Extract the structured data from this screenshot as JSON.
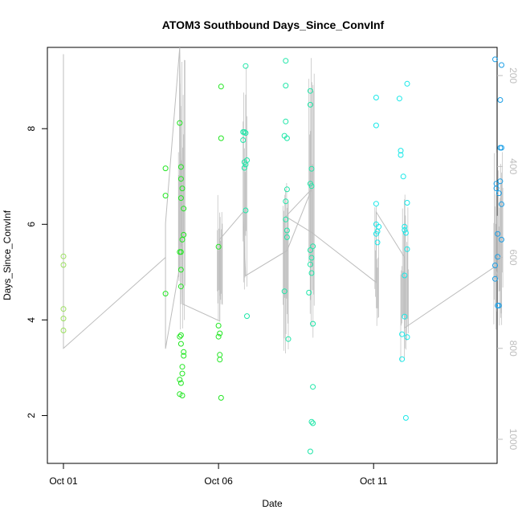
{
  "chart_data": {
    "type": "scatter",
    "title": "ATOM3 Southbound Days_Since_ConvInf",
    "xlabel": "Date",
    "ylabel": "Days_Since_ConvInf",
    "x_axis_type": "date",
    "xlim": [
      "2020-10-01",
      "2020-10-15T12:00"
    ],
    "ylim": [
      1,
      9.7
    ],
    "x_ticks": [
      {
        "value": "2020-10-01",
        "label": "Oct 01"
      },
      {
        "value": "2020-10-06",
        "label": "Oct 06"
      },
      {
        "value": "2020-10-11",
        "label": "Oct 11"
      }
    ],
    "y_ticks": [
      2,
      4,
      6,
      8
    ],
    "right_axis": {
      "ticks": [
        200,
        400,
        600,
        800,
        1000
      ],
      "range": [
        1053,
        138
      ],
      "color": "#bdbdbd"
    },
    "grid": false,
    "legend": "none",
    "point_color_scale": [
      "#9be15d",
      "#22e622",
      "#1fe6a8",
      "#18e8e8",
      "#1a9ee6"
    ],
    "points": [
      {
        "x": "2020-10-01",
        "y": 5.33
      },
      {
        "x": "2020-10-01",
        "y": 5.15
      },
      {
        "x": "2020-10-01",
        "y": 4.23
      },
      {
        "x": "2020-10-01",
        "y": 4.03
      },
      {
        "x": "2020-10-01",
        "y": 3.78
      },
      {
        "x": "2020-10-04T07:00",
        "y": 7.17
      },
      {
        "x": "2020-10-04T07:00",
        "y": 6.6
      },
      {
        "x": "2020-10-04T07:00",
        "y": 4.55
      },
      {
        "x": "2020-10-04T18:00",
        "y": 8.12
      },
      {
        "x": "2020-10-04T19:00",
        "y": 7.2
      },
      {
        "x": "2020-10-04T19:00",
        "y": 6.95
      },
      {
        "x": "2020-10-04T20:00",
        "y": 6.75
      },
      {
        "x": "2020-10-04T19:00",
        "y": 6.55
      },
      {
        "x": "2020-10-04T21:00",
        "y": 6.33
      },
      {
        "x": "2020-10-04T21:00",
        "y": 5.78
      },
      {
        "x": "2020-10-04T20:00",
        "y": 5.68
      },
      {
        "x": "2020-10-04T18:00",
        "y": 5.42
      },
      {
        "x": "2020-10-04T19:00",
        "y": 5.42
      },
      {
        "x": "2020-10-04T19:00",
        "y": 5.05
      },
      {
        "x": "2020-10-04T19:00",
        "y": 4.7
      },
      {
        "x": "2020-10-04T19:00",
        "y": 3.68
      },
      {
        "x": "2020-10-04T18:00",
        "y": 3.65
      },
      {
        "x": "2020-10-04T19:00",
        "y": 3.5
      },
      {
        "x": "2020-10-04T21:00",
        "y": 3.33
      },
      {
        "x": "2020-10-04T21:00",
        "y": 3.25
      },
      {
        "x": "2020-10-04T20:00",
        "y": 3.02
      },
      {
        "x": "2020-10-04T20:00",
        "y": 2.88
      },
      {
        "x": "2020-10-04T18:00",
        "y": 2.75
      },
      {
        "x": "2020-10-04T19:00",
        "y": 2.68
      },
      {
        "x": "2020-10-04T18:00",
        "y": 2.45
      },
      {
        "x": "2020-10-04T20:00",
        "y": 2.42
      },
      {
        "x": "2020-10-06T02:00",
        "y": 8.88
      },
      {
        "x": "2020-10-06T02:00",
        "y": 7.8
      },
      {
        "x": "2020-10-06T00:00",
        "y": 5.53
      },
      {
        "x": "2020-10-06T00:00",
        "y": 3.88
      },
      {
        "x": "2020-10-06T01:00",
        "y": 3.72
      },
      {
        "x": "2020-10-06T00:00",
        "y": 3.65
      },
      {
        "x": "2020-10-06T01:00",
        "y": 3.27
      },
      {
        "x": "2020-10-06T01:00",
        "y": 3.17
      },
      {
        "x": "2020-10-06T02:00",
        "y": 2.37
      },
      {
        "x": "2020-10-06T21:00",
        "y": 9.31
      },
      {
        "x": "2020-10-06T19:00",
        "y": 7.93
      },
      {
        "x": "2020-10-06T20:00",
        "y": 7.93
      },
      {
        "x": "2020-10-06T21:00",
        "y": 7.91
      },
      {
        "x": "2020-10-06T19:00",
        "y": 7.76
      },
      {
        "x": "2020-10-06T22:00",
        "y": 7.34
      },
      {
        "x": "2020-10-06T20:00",
        "y": 7.3
      },
      {
        "x": "2020-10-06T21:00",
        "y": 7.25
      },
      {
        "x": "2020-10-06T20:00",
        "y": 7.18
      },
      {
        "x": "2020-10-06T21:00",
        "y": 6.29
      },
      {
        "x": "2020-10-06T22:00",
        "y": 4.08
      },
      {
        "x": "2020-10-08T04:00",
        "y": 9.42
      },
      {
        "x": "2020-10-08T04:00",
        "y": 8.9
      },
      {
        "x": "2020-10-08T04:00",
        "y": 8.15
      },
      {
        "x": "2020-10-08T03:00",
        "y": 7.85
      },
      {
        "x": "2020-10-08T05:00",
        "y": 7.8
      },
      {
        "x": "2020-10-08T05:00",
        "y": 6.73
      },
      {
        "x": "2020-10-08T04:00",
        "y": 6.48
      },
      {
        "x": "2020-10-08T04:00",
        "y": 6.1
      },
      {
        "x": "2020-10-08T05:00",
        "y": 5.87
      },
      {
        "x": "2020-10-08T05:00",
        "y": 5.73
      },
      {
        "x": "2020-10-08T03:00",
        "y": 4.6
      },
      {
        "x": "2020-10-08T06:00",
        "y": 3.6
      },
      {
        "x": "2020-10-08T23:00",
        "y": 8.79
      },
      {
        "x": "2020-10-08T23:00",
        "y": 8.5
      },
      {
        "x": "2020-10-09T00:00",
        "y": 7.16
      },
      {
        "x": "2020-10-08T23:00",
        "y": 6.85
      },
      {
        "x": "2020-10-09T00:00",
        "y": 6.8
      },
      {
        "x": "2020-10-09T01:00",
        "y": 5.54
      },
      {
        "x": "2020-10-08T23:00",
        "y": 5.46
      },
      {
        "x": "2020-10-09T00:00",
        "y": 5.3
      },
      {
        "x": "2020-10-08T23:00",
        "y": 5.16
      },
      {
        "x": "2020-10-09T00:00",
        "y": 4.98
      },
      {
        "x": "2020-10-08T22:00",
        "y": 4.57
      },
      {
        "x": "2020-10-09T01:00",
        "y": 3.92
      },
      {
        "x": "2020-10-09T01:00",
        "y": 2.6
      },
      {
        "x": "2020-10-09T00:00",
        "y": 1.87
      },
      {
        "x": "2020-10-09T01:00",
        "y": 1.84
      },
      {
        "x": "2020-10-08T23:00",
        "y": 1.25
      },
      {
        "x": "2020-10-11T02:00",
        "y": 8.65
      },
      {
        "x": "2020-10-11T02:00",
        "y": 8.07
      },
      {
        "x": "2020-10-11T02:00",
        "y": 6.43
      },
      {
        "x": "2020-10-11T02:00",
        "y": 6.0
      },
      {
        "x": "2020-10-11T04:00",
        "y": 5.95
      },
      {
        "x": "2020-10-11T03:00",
        "y": 5.85
      },
      {
        "x": "2020-10-11T02:00",
        "y": 5.8
      },
      {
        "x": "2020-10-11T03:00",
        "y": 5.62
      },
      {
        "x": "2020-10-11T20:00",
        "y": 8.63
      },
      {
        "x": "2020-10-12T02:00",
        "y": 8.94
      },
      {
        "x": "2020-10-11T21:00",
        "y": 7.54
      },
      {
        "x": "2020-10-11T21:00",
        "y": 7.45
      },
      {
        "x": "2020-10-11T23:00",
        "y": 7.0
      },
      {
        "x": "2020-10-12T02:00",
        "y": 6.45
      },
      {
        "x": "2020-10-12T00:00",
        "y": 5.95
      },
      {
        "x": "2020-10-12T00:00",
        "y": 5.88
      },
      {
        "x": "2020-10-12T01:00",
        "y": 5.82
      },
      {
        "x": "2020-10-12T02:00",
        "y": 5.48
      },
      {
        "x": "2020-10-12T00:00",
        "y": 4.93
      },
      {
        "x": "2020-10-12T00:00",
        "y": 4.07
      },
      {
        "x": "2020-10-11T22:00",
        "y": 3.7
      },
      {
        "x": "2020-10-12T02:00",
        "y": 3.64
      },
      {
        "x": "2020-10-11T22:00",
        "y": 3.18
      },
      {
        "x": "2020-10-12T01:00",
        "y": 1.95
      },
      {
        "x": "2020-10-14T22:00",
        "y": 9.45
      },
      {
        "x": "2020-10-15T03:00",
        "y": 9.33
      },
      {
        "x": "2020-10-15T02:00",
        "y": 8.6
      },
      {
        "x": "2020-10-15T02:00",
        "y": 7.6
      },
      {
        "x": "2020-10-15T03:00",
        "y": 7.6
      },
      {
        "x": "2020-10-15T02:00",
        "y": 6.9
      },
      {
        "x": "2020-10-14T23:00",
        "y": 6.85
      },
      {
        "x": "2020-10-14T23:00",
        "y": 6.75
      },
      {
        "x": "2020-10-15T01:00",
        "y": 6.65
      },
      {
        "x": "2020-10-15T03:00",
        "y": 6.42
      },
      {
        "x": "2020-10-15T00:00",
        "y": 5.8
      },
      {
        "x": "2020-10-15T03:00",
        "y": 5.68
      },
      {
        "x": "2020-10-15T00:00",
        "y": 5.32
      },
      {
        "x": "2020-10-14T22:00",
        "y": 5.14
      },
      {
        "x": "2020-10-14T22:00",
        "y": 4.86
      },
      {
        "x": "2020-10-15T00:00",
        "y": 4.3
      },
      {
        "x": "2020-10-15T01:00",
        "y": 4.3
      }
    ],
    "line_color": "#bdbdbd",
    "line_series": [
      {
        "x": "2020-10-01",
        "r": 153
      },
      {
        "x": "2020-10-01",
        "r": 800
      },
      {
        "x": "2020-10-04T07:00",
        "r": 600
      },
      {
        "x": "2020-10-04T07:00",
        "r": 525
      },
      {
        "x": "2020-10-04T07:00",
        "r": 801
      },
      {
        "x": "2020-10-04T18:00",
        "r": 620
      },
      {
        "x": "2020-10-04T18:00",
        "r": 138
      },
      {
        "x": "2020-10-04T07:00",
        "r": 525
      },
      {
        "x": "2020-10-04T18:00",
        "r": 138
      },
      {
        "x": "2020-10-04T20:00",
        "r": 702
      },
      {
        "x": "2020-10-06T01:00",
        "r": 740
      },
      {
        "x": "2020-10-06T01:00",
        "r": 560
      },
      {
        "x": "2020-10-06T19:00",
        "r": 500
      },
      {
        "x": "2020-10-06T21:00",
        "r": 640
      },
      {
        "x": "2020-10-08T05:00",
        "r": 585
      },
      {
        "x": "2020-10-09T00:00",
        "r": 450
      },
      {
        "x": "2020-10-08T04:00",
        "r": 510
      },
      {
        "x": "2020-10-09T00:00",
        "r": 545
      },
      {
        "x": "2020-10-11T02:00",
        "r": 655
      },
      {
        "x": "2020-10-11T02:00",
        "r": 500
      },
      {
        "x": "2020-10-12T00:00",
        "r": 600
      },
      {
        "x": "2020-10-12T00:00",
        "r": 755
      },
      {
        "x": "2020-10-14T22:00",
        "r": 620
      },
      {
        "x": "2020-10-15T00:00",
        "r": 640
      }
    ],
    "spike_clusters": [
      {
        "x_start": "2020-10-04T17:00",
        "x_end": "2020-10-04T22:00",
        "r_top": 138,
        "r_bottom": 770
      },
      {
        "x_start": "2020-10-05T23:00",
        "x_end": "2020-10-06T03:00",
        "r_top": 455,
        "r_bottom": 740
      },
      {
        "x_start": "2020-10-06T19:00",
        "x_end": "2020-10-06T22:00",
        "r_top": 180,
        "r_bottom": 700
      },
      {
        "x_start": "2020-10-08T02:00",
        "x_end": "2020-10-08T06:00",
        "r_top": 420,
        "r_bottom": 820
      },
      {
        "x_start": "2020-10-08T22:00",
        "x_end": "2020-10-09T02:00",
        "r_top": 138,
        "r_bottom": 830
      },
      {
        "x_start": "2020-10-11T01:00",
        "x_end": "2020-10-11T04:00",
        "r_top": 480,
        "r_bottom": 770
      },
      {
        "x_start": "2020-10-11T21:00",
        "x_end": "2020-10-12T03:00",
        "r_top": 460,
        "r_bottom": 840
      },
      {
        "x_start": "2020-10-14T21:00",
        "x_end": "2020-10-15T04:00",
        "r_top": 360,
        "r_bottom": 770
      }
    ]
  }
}
